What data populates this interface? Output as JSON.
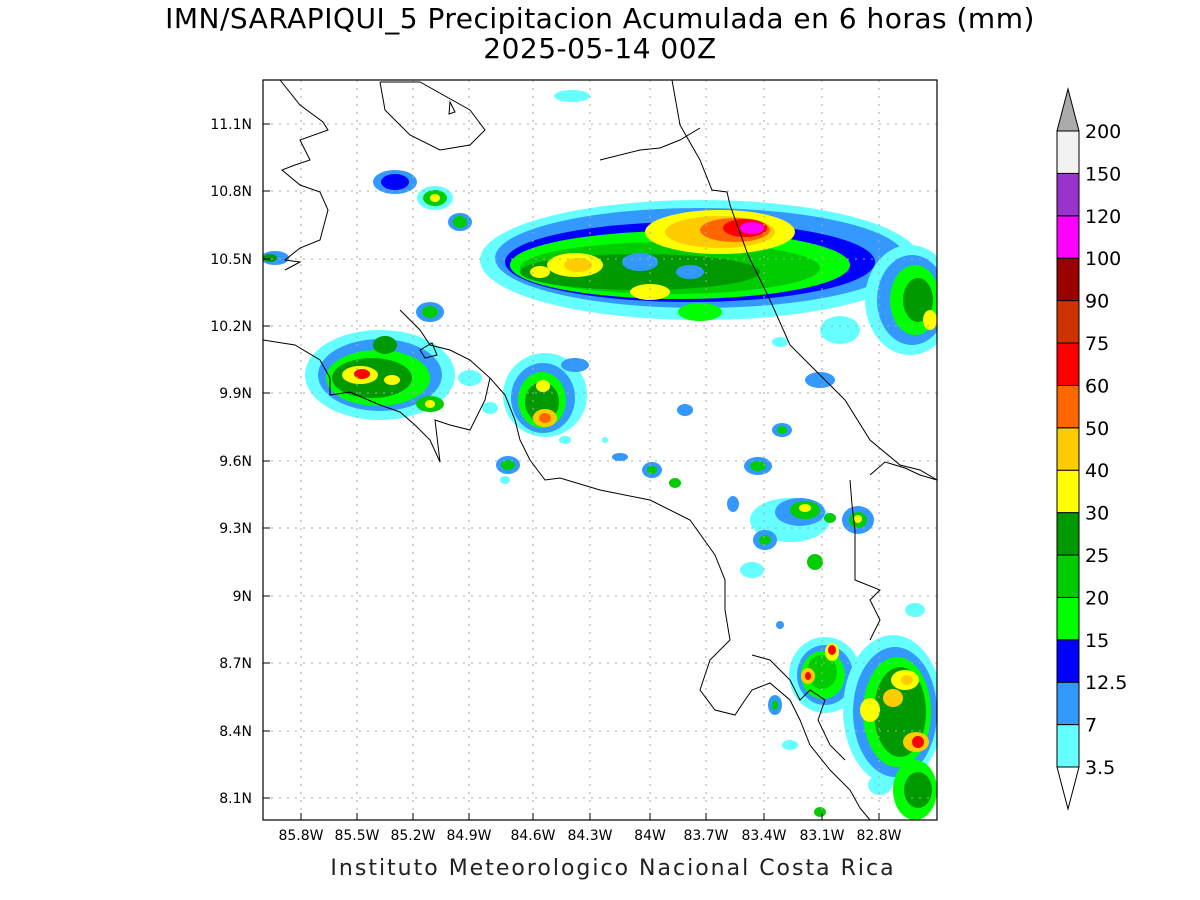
{
  "header": {
    "title": "IMN/SARAPIQUI_5 Precipitacion Acumulada en 6 horas (mm)",
    "subtitle": "2025-05-14 00Z"
  },
  "footer": {
    "credit": "Instituto Meteorologico Nacional Costa Rica"
  },
  "axes": {
    "x_ticks": [
      "85.8W",
      "85.5W",
      "85.2W",
      "84.9W",
      "84.6W",
      "84.3W",
      "84W",
      "83.7W",
      "83.4W",
      "83.1W",
      "82.8W"
    ],
    "y_ticks": [
      "11.1N",
      "10.8N",
      "10.5N",
      "10.2N",
      "9.9N",
      "9.6N",
      "9.3N",
      "9N",
      "8.7N",
      "8.4N",
      "8.1N"
    ]
  },
  "legend": {
    "labels": [
      "3.5",
      "7",
      "12.5",
      "15",
      "20",
      "25",
      "30",
      "40",
      "50",
      "60",
      "75",
      "90",
      "100",
      "120",
      "150",
      "200"
    ],
    "colors": [
      "#66ffff",
      "#3399ff",
      "#0000ff",
      "#00ff00",
      "#00cc00",
      "#009900",
      "#ffff00",
      "#ffcc00",
      "#ff6600",
      "#ff0000",
      "#cc3300",
      "#990000",
      "#ff00ff",
      "#9933cc",
      "#f2f2f2",
      "#aaaaaa"
    ]
  }
}
